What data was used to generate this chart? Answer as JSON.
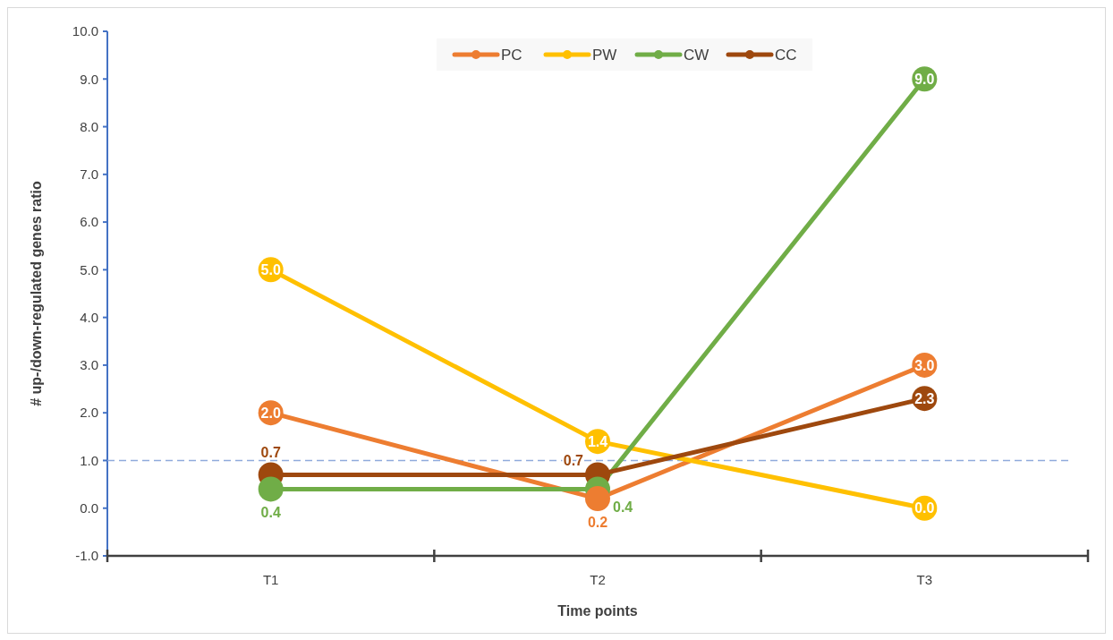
{
  "chart_data": {
    "type": "line",
    "xlabel": "Time points",
    "ylabel": "# up-/down-regulated genes ratio",
    "categories": [
      "T1",
      "T2",
      "T3"
    ],
    "series": [
      {
        "name": "PC",
        "color": "#ed7d31",
        "values": [
          2.0,
          0.2,
          3.0
        ],
        "value_labels": [
          "2.0",
          "0.2",
          "3.0"
        ]
      },
      {
        "name": "PW",
        "color": "#ffc000",
        "values": [
          5.0,
          1.4,
          0.0
        ],
        "value_labels": [
          "5.0",
          "1.4",
          "0.0"
        ]
      },
      {
        "name": "CW",
        "color": "#70ad47",
        "values": [
          0.4,
          0.4,
          9.0
        ],
        "value_labels": [
          "0.4",
          "0.4",
          "9.0"
        ]
      },
      {
        "name": "CC",
        "color": "#9e480e",
        "values": [
          0.7,
          0.7,
          2.3
        ],
        "value_labels": [
          "0.7",
          "0.7",
          "2.3"
        ]
      }
    ],
    "ylim": [
      -1,
      10
    ],
    "yticks": [
      {
        "value": -1,
        "label": "-1.0"
      },
      {
        "value": 0,
        "label": "0.0"
      },
      {
        "value": 1,
        "label": "1.0"
      },
      {
        "value": 2,
        "label": "2.0"
      },
      {
        "value": 3,
        "label": "3.0"
      },
      {
        "value": 4,
        "label": "4.0"
      },
      {
        "value": 5,
        "label": "5.0"
      },
      {
        "value": 6,
        "label": "6.0"
      },
      {
        "value": 7,
        "label": "7.0"
      },
      {
        "value": 8,
        "label": "8.0"
      },
      {
        "value": 9,
        "label": "9.0"
      },
      {
        "value": 10,
        "label": "10.0"
      }
    ],
    "ref_lines": [
      {
        "axis": "y",
        "value": 1,
        "label": null,
        "color": "#8faadc",
        "line_style": "dashed"
      }
    ],
    "grid": false,
    "legend": "top",
    "marker": "circle",
    "line_style": "solid"
  }
}
